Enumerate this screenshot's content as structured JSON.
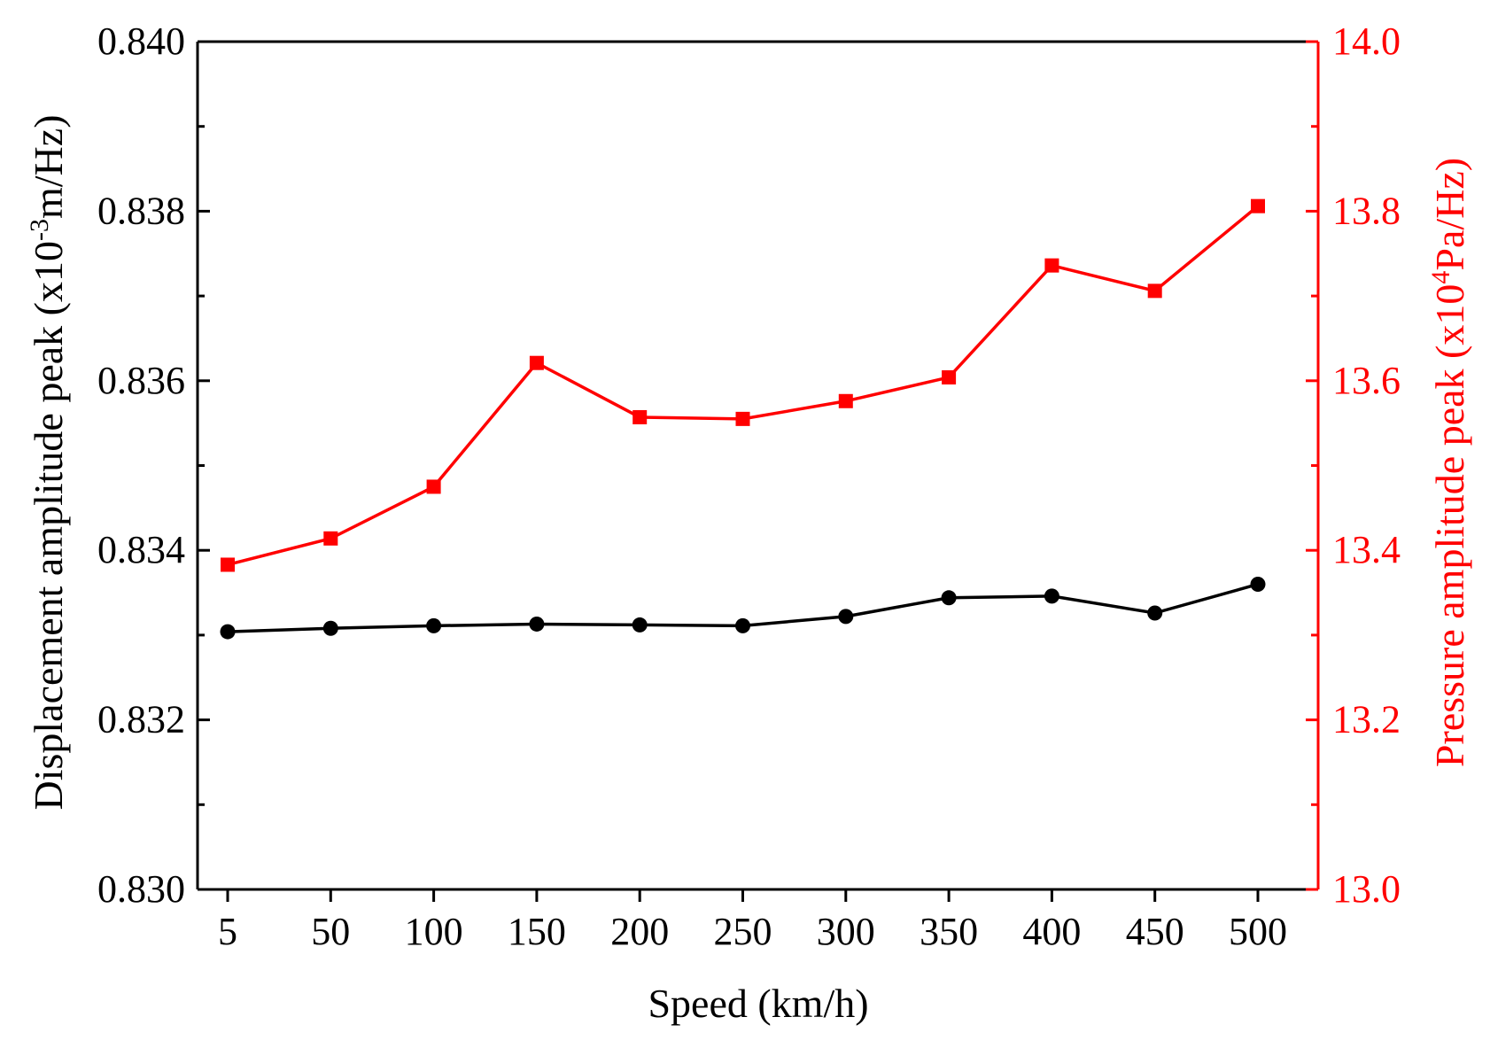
{
  "chart_data": {
    "type": "line",
    "categories": [
      "5",
      "50",
      "100",
      "150",
      "200",
      "250",
      "300",
      "350",
      "400",
      "450",
      "500"
    ],
    "xlabel": "Speed (km/h)",
    "series": [
      {
        "name": "Displacement amplitude peak",
        "axis": "left",
        "marker": "circle",
        "color": "#000000",
        "values": [
          0.83304,
          0.83308,
          0.83311,
          0.83313,
          0.83312,
          0.83311,
          0.83322,
          0.83344,
          0.83346,
          0.83326,
          0.8336
        ]
      },
      {
        "name": "Pressure amplitude peak",
        "axis": "right",
        "marker": "square",
        "color": "#ff0000",
        "values": [
          13.383,
          13.414,
          13.475,
          13.621,
          13.557,
          13.555,
          13.576,
          13.604,
          13.736,
          13.706,
          13.806
        ]
      }
    ],
    "left_axis": {
      "label_main": "Displacement amplitude peak (x10",
      "label_sup": "-3",
      "label_tail": "m/Hz)",
      "ylim": [
        0.83,
        0.84
      ],
      "ticks": [
        "0.830",
        "0.832",
        "0.834",
        "0.836",
        "0.838",
        "0.840"
      ],
      "tick_values": [
        0.83,
        0.832,
        0.834,
        0.836,
        0.838,
        0.84
      ],
      "color": "#000000"
    },
    "right_axis": {
      "label_main": "Pressure amplitude peak (x10",
      "label_sup": "4",
      "label_tail": "Pa/Hz)",
      "ylim": [
        13.0,
        14.0
      ],
      "ticks": [
        "13.0",
        "13.2",
        "13.4",
        "13.6",
        "13.8",
        "14.0"
      ],
      "tick_values": [
        13.0,
        13.2,
        13.4,
        13.6,
        13.8,
        14.0
      ],
      "color": "#ff0000"
    },
    "grid": false
  }
}
